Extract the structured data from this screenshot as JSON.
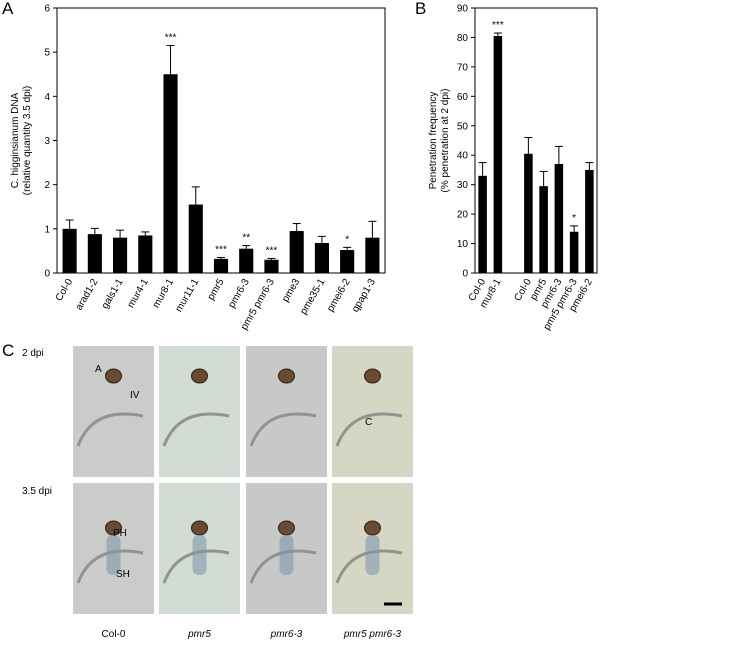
{
  "panel_labels": [
    "A",
    "B",
    "C"
  ],
  "chart_data": [
    {
      "type": "bar",
      "y_label": [
        "C. higginsianum DNA",
        "(relative quantity 3.5 dpi)"
      ],
      "categories": [
        "Col-0",
        "arad1-2",
        "gals1-1",
        "mur4-1",
        "mur8-1",
        "mur11-1",
        "pmr5",
        "pmr6-3",
        "pmr5 pmr6-3",
        "pme3",
        "pme35-1",
        "pmei6-2",
        "qpap1-3"
      ],
      "values": [
        1.0,
        0.88,
        0.8,
        0.85,
        4.5,
        1.55,
        0.32,
        0.55,
        0.3,
        0.95,
        0.68,
        0.52,
        0.8
      ],
      "errors": [
        0.2,
        0.13,
        0.17,
        0.08,
        0.65,
        0.4,
        0.03,
        0.07,
        0.03,
        0.17,
        0.15,
        0.06,
        0.37
      ],
      "significance": [
        null,
        null,
        null,
        null,
        "***",
        null,
        "***",
        "**",
        "***",
        null,
        null,
        "*",
        null
      ],
      "color": "#000000",
      "ylim": [
        0,
        6
      ],
      "yticks": [
        0,
        1,
        2,
        3,
        4,
        5,
        6
      ]
    },
    {
      "type": "bar",
      "y_label": [
        "Penetration frequency",
        "(% penetration at 2 dpi)"
      ],
      "categories": [
        "Col-0",
        "mur8-1",
        null,
        "Col-0",
        "pmr5",
        "pmr6-3",
        "pmr5 pmr6-3",
        "pmei6-2"
      ],
      "values": [
        33,
        80.5,
        null,
        40.5,
        29.5,
        37,
        14,
        35
      ],
      "errors": [
        4.5,
        1,
        null,
        5.5,
        5,
        6,
        2,
        2.5
      ],
      "significance": [
        null,
        "***",
        null,
        null,
        null,
        null,
        "*",
        null
      ],
      "color": "#000000",
      "ylim": [
        0,
        90
      ],
      "yticks": [
        0,
        10,
        20,
        30,
        40,
        50,
        60,
        70,
        80,
        90
      ]
    }
  ],
  "micrographs": {
    "rows": [
      "2 dpi",
      "3.5 dpi"
    ],
    "columns": [
      "Col-0",
      "pmr5",
      "pmr6-3",
      "pmr5 pmr6-3"
    ],
    "annotations": [
      "A",
      "IV",
      "C",
      "PH",
      "SH"
    ]
  }
}
